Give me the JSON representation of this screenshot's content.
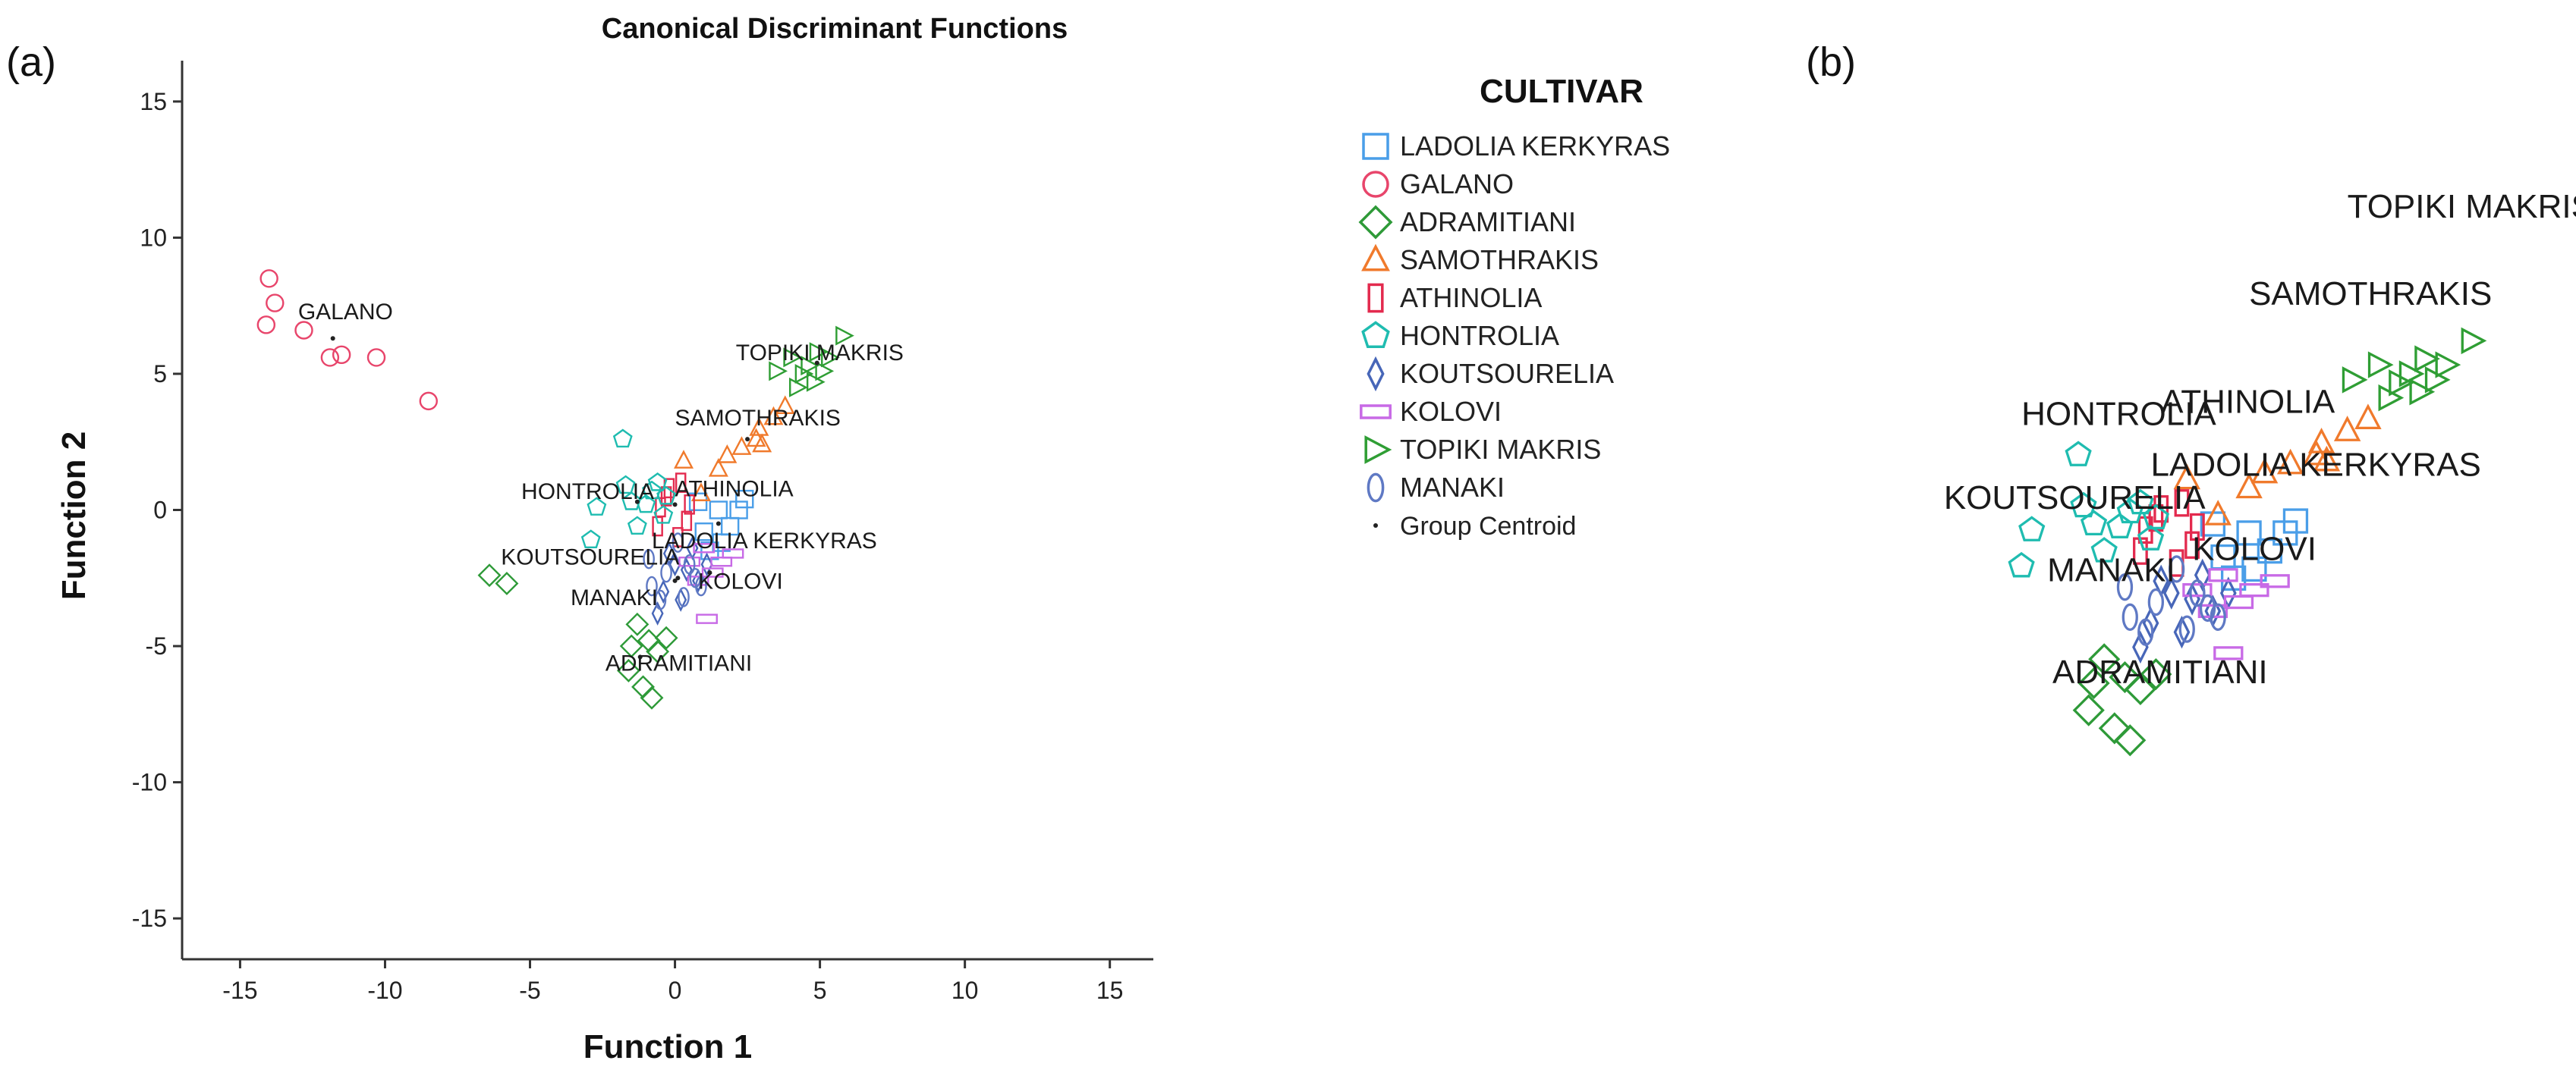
{
  "panel_labels": {
    "a": "(a)",
    "b": "(b)"
  },
  "colors": {
    "LADOLIA KERKYRAS": "#4a9ee8",
    "GALANO": "#e8456b",
    "ADRAMITIANI": "#2e9a38",
    "SAMOTHRAKIS": "#f07a2c",
    "ATHINOLIA": "#e32a4e",
    "HONTROLIA": "#1fbcb0",
    "KOUTSOURELIA": "#4766b8",
    "KOLOVI": "#c86ae6",
    "TOPIKI MAKRIS": "#2f9e34",
    "MANAKI": "#5f79c4",
    "Group Centroid": "#222222"
  },
  "chart_data": [
    {
      "type": "scatter",
      "title": "Canonical Discriminant Functions",
      "xlabel": "Function 1",
      "ylabel": "Function 2",
      "xlim": [
        -17,
        16.5
      ],
      "ylim": [
        -16.5,
        16.5
      ],
      "xticks": [
        -15,
        -10,
        -5,
        0,
        5,
        10,
        15
      ],
      "yticks": [
        -15,
        -10,
        -5,
        0,
        5,
        10,
        15
      ],
      "grid": false,
      "legend": {
        "title": "CULTIVAR",
        "position": "right",
        "entries": [
          "LADOLIA KERKYRAS",
          "GALANO",
          "ADRAMITIANI",
          "SAMOTHRAKIS",
          "ATHINOLIA",
          "HONTROLIA",
          "KOUTSOURELIA",
          "KOLOVI",
          "TOPIKI MAKRIS",
          "MANAKI",
          "Group Centroid"
        ]
      },
      "series": [
        {
          "name": "LADOLIA KERKYRAS",
          "marker": "square",
          "points": [
            [
              1.5,
              0
            ],
            [
              2.2,
              0
            ],
            [
              1.0,
              -0.8
            ],
            [
              1.9,
              -0.6
            ],
            [
              0.8,
              0.3
            ],
            [
              1.6,
              -1.2
            ],
            [
              2.4,
              0.4
            ],
            [
              1.2,
              -1.5
            ]
          ]
        },
        {
          "name": "GALANO",
          "marker": "circle",
          "points": [
            [
              -14.0,
              8.5
            ],
            [
              -13.8,
              7.6
            ],
            [
              -14.1,
              6.8
            ],
            [
              -12.8,
              6.6
            ],
            [
              -11.9,
              5.6
            ],
            [
              -11.5,
              5.7
            ],
            [
              -10.3,
              5.6
            ],
            [
              -8.5,
              4.0
            ]
          ]
        },
        {
          "name": "ADRAMITIANI",
          "marker": "diamond",
          "points": [
            [
              -6.4,
              -2.4
            ],
            [
              -5.8,
              -2.7
            ],
            [
              -1.3,
              -4.2
            ],
            [
              -0.9,
              -4.8
            ],
            [
              -1.5,
              -5.0
            ],
            [
              -0.3,
              -4.7
            ],
            [
              -1.6,
              -5.9
            ],
            [
              -1.1,
              -6.5
            ],
            [
              -0.8,
              -6.9
            ],
            [
              -0.6,
              -5.2
            ]
          ]
        },
        {
          "name": "SAMOTHRAKIS",
          "marker": "triangle",
          "points": [
            [
              0.3,
              1.8
            ],
            [
              1.5,
              1.5
            ],
            [
              1.8,
              2.0
            ],
            [
              2.3,
              2.3
            ],
            [
              2.8,
              2.6
            ],
            [
              2.9,
              3.0
            ],
            [
              3.4,
              3.4
            ],
            [
              3.0,
              2.4
            ],
            [
              3.8,
              3.8
            ],
            [
              0.9,
              0.6
            ]
          ]
        },
        {
          "name": "ATHINOLIA",
          "marker": "rect",
          "points": [
            [
              0.2,
              1.0
            ],
            [
              -0.3,
              0.5
            ],
            [
              0.5,
              0.2
            ],
            [
              -0.6,
              -0.6
            ],
            [
              0.1,
              -1.0
            ],
            [
              -0.2,
              0.8
            ],
            [
              0.4,
              -0.4
            ],
            [
              -0.5,
              0.1
            ]
          ]
        },
        {
          "name": "HONTROLIA",
          "marker": "pentagon",
          "points": [
            [
              -1.8,
              2.6
            ],
            [
              -2.7,
              0.1
            ],
            [
              -2.9,
              -1.1
            ],
            [
              -1.5,
              0.3
            ],
            [
              -0.6,
              1.0
            ],
            [
              -1.0,
              0.2
            ],
            [
              -0.3,
              0.5
            ],
            [
              -1.3,
              -0.6
            ],
            [
              -0.8,
              0.7
            ],
            [
              -0.4,
              -0.2
            ],
            [
              -1.7,
              0.9
            ]
          ]
        },
        {
          "name": "KOUTSOURELIA",
          "marker": "thindiamond",
          "points": [
            [
              -0.2,
              -1.6
            ],
            [
              0.4,
              -2.2
            ],
            [
              -0.4,
              -3.0
            ],
            [
              0.8,
              -2.6
            ],
            [
              0.2,
              -3.3
            ],
            [
              -0.6,
              -3.8
            ],
            [
              1.1,
              -2.0
            ],
            [
              0.0,
              -2.0
            ],
            [
              0.6,
              -1.4
            ]
          ]
        },
        {
          "name": "KOLOVI",
          "marker": "wide",
          "points": [
            [
              1.0,
              -1.4
            ],
            [
              1.6,
              -1.9
            ],
            [
              2.0,
              -1.6
            ],
            [
              0.8,
              -2.6
            ],
            [
              1.3,
              -2.3
            ],
            [
              1.1,
              -4.0
            ],
            [
              0.5,
              -1.9
            ]
          ]
        },
        {
          "name": "TOPIKI MAKRIS",
          "marker": "triright",
          "points": [
            [
              3.5,
              5.1
            ],
            [
              4.0,
              5.6
            ],
            [
              4.4,
              5.0
            ],
            [
              4.6,
              5.3
            ],
            [
              4.9,
              5.8
            ],
            [
              5.1,
              5.1
            ],
            [
              5.3,
              5.6
            ],
            [
              5.8,
              6.4
            ],
            [
              4.8,
              4.7
            ],
            [
              4.2,
              4.5
            ]
          ]
        },
        {
          "name": "MANAKI",
          "marker": "ellipse",
          "points": [
            [
              -0.8,
              -2.8
            ],
            [
              0.3,
              -3.2
            ],
            [
              0.9,
              -2.8
            ],
            [
              -0.3,
              -2.3
            ],
            [
              0.5,
              -2.0
            ],
            [
              -0.5,
              -3.3
            ],
            [
              0.1,
              -1.2
            ],
            [
              -0.9,
              -1.8
            ],
            [
              0.7,
              -2.5
            ]
          ]
        }
      ],
      "centroids": [
        {
          "name": "GALANO",
          "x": -11.8,
          "y": 6.3
        },
        {
          "name": "TOPIKI MAKRIS",
          "x": 4.9,
          "y": 5.4
        },
        {
          "name": "SAMOTHRAKIS",
          "x": 2.5,
          "y": 2.6
        },
        {
          "name": "HONTROLIA",
          "x": -1.3,
          "y": 0.3
        },
        {
          "name": "ATHINOLIA",
          "x": 0.0,
          "y": 0.2
        },
        {
          "name": "LADOLIA KERKYRAS",
          "x": 1.5,
          "y": -0.5
        },
        {
          "name": "KOUTSOURELIA",
          "x": 0.1,
          "y": -2.5
        },
        {
          "name": "KOLOVI",
          "x": 1.2,
          "y": -2.3
        },
        {
          "name": "MANAKI",
          "x": 0.0,
          "y": -2.6
        },
        {
          "name": "ADRAMITIANI",
          "x": -1.2,
          "y": -5.4
        }
      ],
      "annotations": [
        {
          "text": "GALANO",
          "x": -13.0,
          "y": 7.0
        },
        {
          "text": "TOPIKI MAKRIS",
          "x": 2.1,
          "y": 5.5
        },
        {
          "text": "SAMOTHRAKIS",
          "x": 0.0,
          "y": 3.1
        },
        {
          "text": "HONTROLIA",
          "x": -5.3,
          "y": 0.4
        },
        {
          "text": "ATHINOLIA",
          "x": 0.0,
          "y": 0.5
        },
        {
          "text": "LADOLIA KERKYRAS",
          "x": -0.8,
          "y": -1.4
        },
        {
          "text": "KOUTSOURELIA",
          "x": -6.0,
          "y": -2.0
        },
        {
          "text": "KOLOVI",
          "x": 0.8,
          "y": -2.9
        },
        {
          "text": "MANAKI",
          "x": -3.6,
          "y": -3.5
        },
        {
          "text": "ADRAMITIANI",
          "x": -2.4,
          "y": -5.9
        }
      ]
    },
    {
      "type": "scatter",
      "title": "",
      "xlim": [
        -5.6,
        7.6
      ],
      "ylim": [
        -7.5,
        13.2
      ],
      "axes_visible": false,
      "series_ref": "same points as panel (a), enlarged",
      "annotations": [
        {
          "text": "TOPIKI MAKRIS",
          "x": 3.4,
          "y": 10.5
        },
        {
          "text": "SAMOTHRAKIS",
          "x": 1.5,
          "y": 7.6
        },
        {
          "text": "HONTROLIA",
          "x": -2.9,
          "y": 3.6
        },
        {
          "text": "ATHINOLIA",
          "x": -0.2,
          "y": 4.0
        },
        {
          "text": "LADOLIA KERKYRAS",
          "x": -0.4,
          "y": 1.9
        },
        {
          "text": "KOUTSOURELIA",
          "x": -4.4,
          "y": 0.8
        },
        {
          "text": "KOLOVI",
          "x": 0.4,
          "y": -0.9
        },
        {
          "text": "MANAKI",
          "x": -2.4,
          "y": -1.6
        },
        {
          "text": "ADRAMITIANI",
          "x": -2.3,
          "y": -5.0
        }
      ]
    }
  ]
}
